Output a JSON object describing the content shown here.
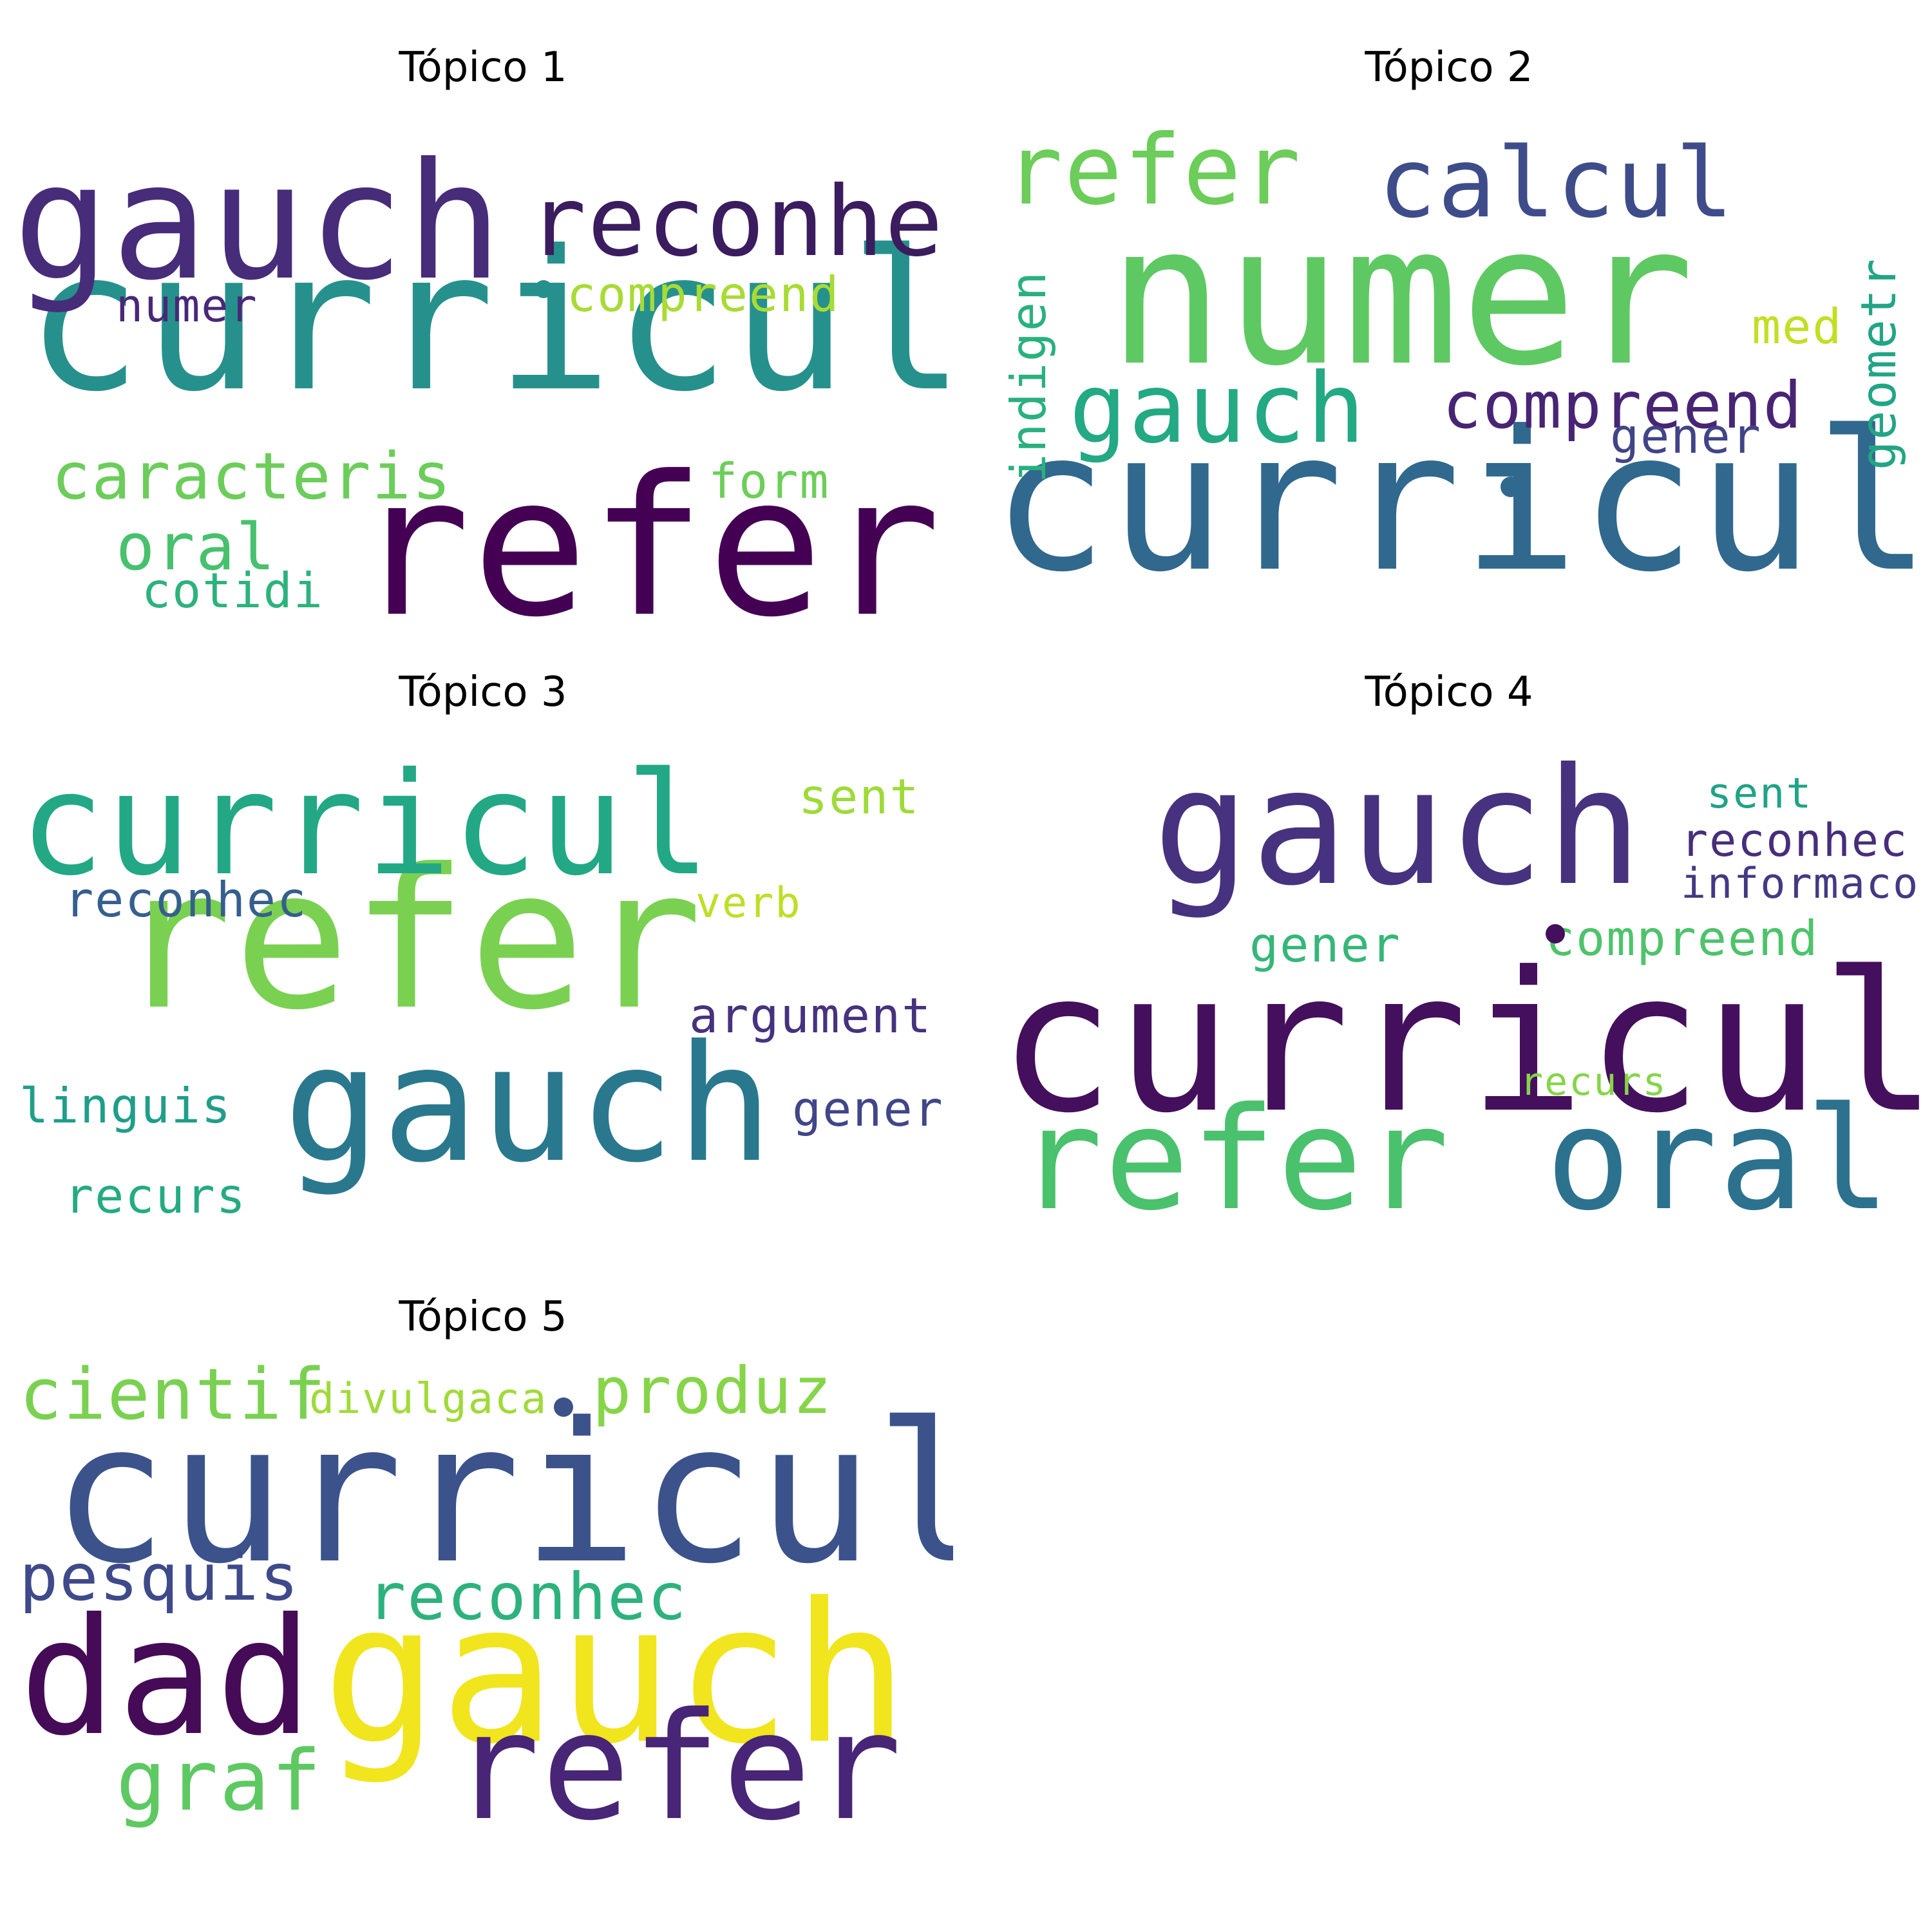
{
  "topics": [
    {
      "title": "Tópico 1",
      "words": [
        {
          "text": "curricul",
          "color": "#26918c"
        },
        {
          "text": "refer",
          "color": "#440154"
        },
        {
          "text": "gauch",
          "color": "#472c7a"
        },
        {
          "text": "reconhec",
          "color": "#3b1c5f"
        },
        {
          "text": "caracteris",
          "color": "#6ccd5a"
        },
        {
          "text": "compreend",
          "color": "#a8db34"
        },
        {
          "text": "oral",
          "color": "#48c16e"
        },
        {
          "text": "numer",
          "color": "#482878"
        },
        {
          "text": "form",
          "color": "#6cce59"
        },
        {
          "text": "cotidi",
          "color": "#2db27d"
        }
      ]
    },
    {
      "title": "Tópico 2",
      "words": [
        {
          "text": "numer",
          "color": "#5ec962"
        },
        {
          "text": "curricul",
          "color": "#31688e"
        },
        {
          "text": "refer",
          "color": "#6ccd5a"
        },
        {
          "text": "calcul",
          "color": "#3e4c8a"
        },
        {
          "text": "gauch",
          "color": "#23a983"
        },
        {
          "text": "compreend",
          "color": "#482475"
        },
        {
          "text": "indigen",
          "color": "#2ab07f"
        },
        {
          "text": "med",
          "color": "#c2df23"
        },
        {
          "text": "gener",
          "color": "#414487"
        },
        {
          "text": "geometr",
          "color": "#21a585"
        }
      ]
    },
    {
      "title": "Tópico 3",
      "words": [
        {
          "text": "refer",
          "color": "#7ad151"
        },
        {
          "text": "curricul",
          "color": "#22a884"
        },
        {
          "text": "gauch",
          "color": "#2a788e"
        },
        {
          "text": "reconhec",
          "color": "#355f8d"
        },
        {
          "text": "argument",
          "color": "#46327e"
        },
        {
          "text": "sent",
          "color": "#9fda3a"
        },
        {
          "text": "verb",
          "color": "#bddf26"
        },
        {
          "text": "linguis",
          "color": "#1f9e89"
        },
        {
          "text": "gener",
          "color": "#404688"
        },
        {
          "text": "recurs",
          "color": "#25ab82"
        }
      ]
    },
    {
      "title": "Tópico 4",
      "words": [
        {
          "text": "curricul",
          "color": "#440f5c"
        },
        {
          "text": "gauch",
          "color": "#46327e"
        },
        {
          "text": "refer",
          "color": "#4ac16d"
        },
        {
          "text": "oral",
          "color": "#2c728e"
        },
        {
          "text": "reconhec",
          "color": "#472d7b"
        },
        {
          "text": "informaco",
          "color": "#443983"
        },
        {
          "text": "compreend",
          "color": "#4ec36b"
        },
        {
          "text": "gener",
          "color": "#35b779"
        },
        {
          "text": "sent",
          "color": "#20a386"
        },
        {
          "text": "recurs",
          "color": "#86d549"
        }
      ]
    },
    {
      "title": "Tópico 5",
      "words": [
        {
          "text": "curricul",
          "color": "#3b528b"
        },
        {
          "text": "gauch",
          "color": "#f1e51d"
        },
        {
          "text": "refer",
          "color": "#482576"
        },
        {
          "text": "dad",
          "color": "#450b57"
        },
        {
          "text": "cientif",
          "color": "#7ad151"
        },
        {
          "text": "divulgaca",
          "color": "#a0da39"
        },
        {
          "text": "produz",
          "color": "#86d549"
        },
        {
          "text": "pesquis",
          "color": "#3e4a89"
        },
        {
          "text": "reconhec",
          "color": "#2db27d"
        },
        {
          "text": "graf",
          "color": "#5ec962"
        }
      ]
    }
  ]
}
